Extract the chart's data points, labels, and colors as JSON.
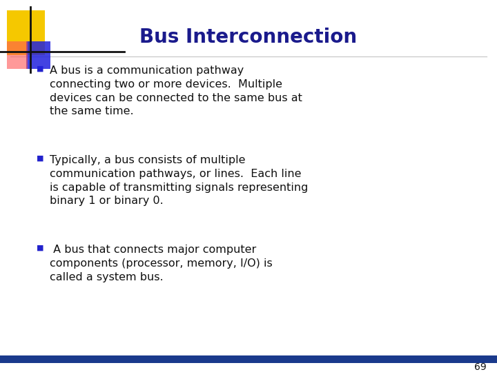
{
  "title": "Bus Interconnection",
  "title_color": "#1a1a8c",
  "title_fontsize": 20,
  "background_color": "#ffffff",
  "bullet_color": "#2222cc",
  "text_color": "#111111",
  "text_fontsize": 11.5,
  "bullets": [
    "A bus is a communication pathway\nconnecting two or more devices.  Multiple\ndevices can be connected to the same bus at\nthe same time.",
    "Typically, a bus consists of multiple\ncommunication pathways, or lines.  Each line\nis capable of transmitting signals representing\nbinary 1 or binary 0.",
    " A bus that connects major computer\ncomponents (processor, memory, I/O) is\ncalled a system bus."
  ],
  "footer_number": "69",
  "bottom_bar_color": "#1a3a8c",
  "logo_yellow_color": "#f5c800",
  "logo_blue_color": "#2222dd",
  "logo_red_color": "#ff5555",
  "logo_line_color": "#111111"
}
